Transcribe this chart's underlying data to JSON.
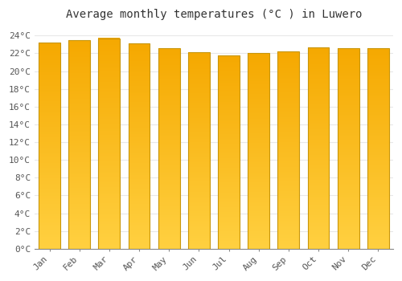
{
  "title": "Average monthly temperatures (°C ) in Luwero",
  "months": [
    "Jan",
    "Feb",
    "Mar",
    "Apr",
    "May",
    "Jun",
    "Jul",
    "Aug",
    "Sep",
    "Oct",
    "Nov",
    "Dec"
  ],
  "values": [
    23.2,
    23.5,
    23.7,
    23.1,
    22.6,
    22.1,
    21.8,
    22.0,
    22.2,
    22.7,
    22.6,
    22.6
  ],
  "ylim": [
    0,
    25
  ],
  "yticks": [
    0,
    2,
    4,
    6,
    8,
    10,
    12,
    14,
    16,
    18,
    20,
    22,
    24
  ],
  "bar_color_top": "#F5A800",
  "bar_color_bottom": "#FFD040",
  "bar_edge_color": "#C8960A",
  "background_color": "#FFFFFF",
  "grid_color": "#E8E8E8",
  "title_fontsize": 10,
  "tick_fontsize": 8,
  "title_font": "monospace",
  "tick_font": "monospace"
}
